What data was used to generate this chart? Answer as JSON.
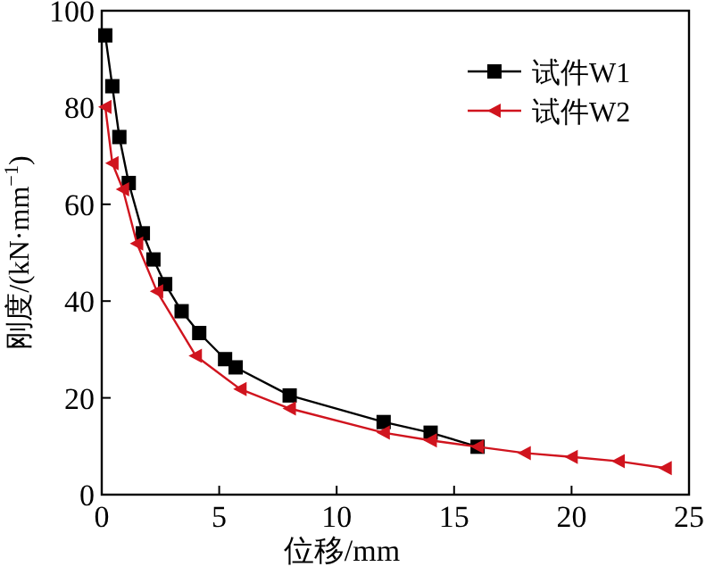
{
  "chart_data": {
    "type": "line",
    "xlabel": "位移/mm",
    "ylabel": "刚度/(kN·mm$^{−1}$)",
    "xlim": [
      0,
      25
    ],
    "xticks": [
      0,
      5,
      10,
      15,
      20,
      25
    ],
    "ylim": [
      0,
      100
    ],
    "yticks": [
      0,
      20,
      40,
      60,
      80,
      100
    ],
    "legend": "top right",
    "grid": false,
    "line_style": "solid",
    "series": [
      {
        "name": "试件W1",
        "color": "#000000",
        "marker": "square",
        "x": [
          0.15,
          0.45,
          0.75,
          1.15,
          1.75,
          2.2,
          2.7,
          3.4,
          4.15,
          5.25,
          5.7,
          8,
          12,
          14,
          16
        ],
        "values": [
          94.9,
          84.4,
          73.9,
          64.4,
          54,
          48.6,
          43.5,
          37.9,
          33.4,
          28,
          26.3,
          20.5,
          15,
          12.8,
          9.9
        ]
      },
      {
        "name": "试件W2",
        "color": "#d0141e",
        "marker": "triangle",
        "x": [
          0.15,
          0.45,
          0.9,
          1.5,
          2.35,
          4,
          5.9,
          8,
          12,
          14,
          16,
          18,
          20,
          22,
          24
        ],
        "values": [
          80.1,
          68.5,
          63.1,
          51.9,
          42,
          28.7,
          21.8,
          17.8,
          12.8,
          11.2,
          9.9,
          8.6,
          7.8,
          6.9,
          5.5
        ]
      }
    ]
  }
}
